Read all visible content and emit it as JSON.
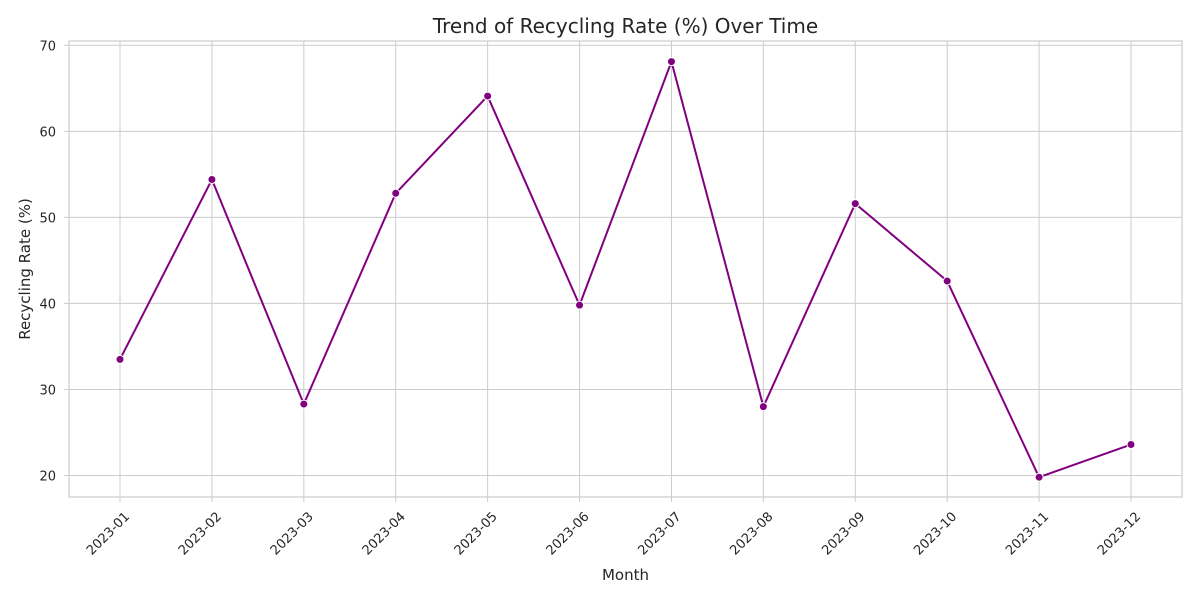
{
  "chart_data": {
    "type": "line",
    "title": "Trend of Recycling Rate (%) Over Time",
    "xlabel": "Month",
    "ylabel": "Recycling Rate (%)",
    "categories": [
      "2023-01",
      "2023-02",
      "2023-03",
      "2023-04",
      "2023-05",
      "2023-06",
      "2023-07",
      "2023-08",
      "2023-09",
      "2023-10",
      "2023-11",
      "2023-12"
    ],
    "series": [
      {
        "values": [
          33.5,
          54.4,
          28.3,
          52.8,
          64.1,
          39.8,
          68.1,
          28.0,
          51.6,
          42.6,
          19.8,
          23.6
        ],
        "color": "#800080"
      }
    ],
    "ylim": [
      17.5,
      70.5
    ],
    "yticks": [
      20,
      30,
      40,
      50,
      60,
      70
    ],
    "grid": true,
    "x_tick_rotation": 45
  }
}
